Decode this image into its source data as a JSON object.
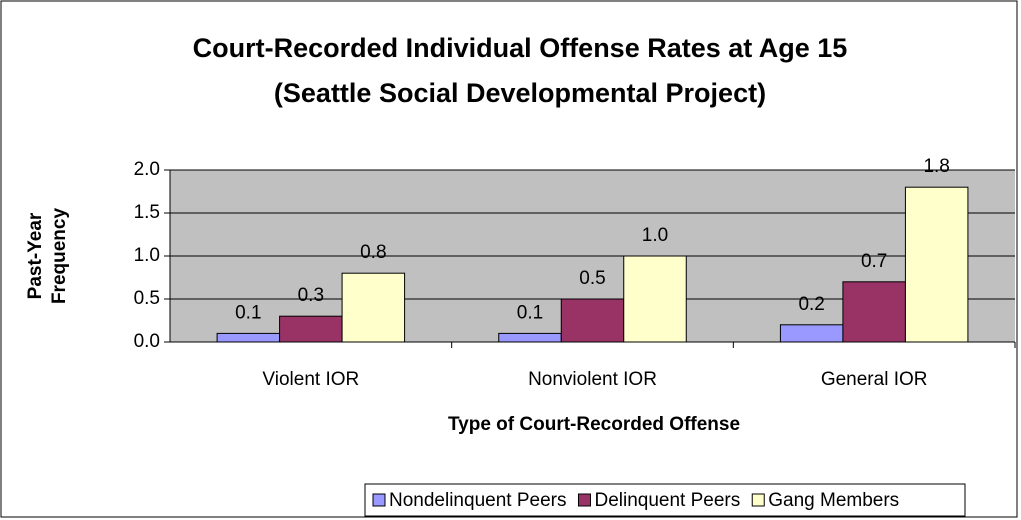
{
  "chart_data": {
    "type": "bar",
    "title": [
      "Court-Recorded Individual Offense Rates at Age 15",
      "(Seattle Social Developmental Project)"
    ],
    "y_label": [
      "Past-Year",
      "Frequency"
    ],
    "x_label": "Type of Court-Recorded Offense",
    "categories": [
      "Violent IOR",
      "Nonviolent IOR",
      "General IOR"
    ],
    "series": [
      {
        "name": "Nondelinquent Peers",
        "color": "#9999ff",
        "values": [
          0.1,
          0.1,
          0.2
        ],
        "value_labels": [
          "0.1",
          "0.1",
          "0.2"
        ]
      },
      {
        "name": "Delinquent Peers",
        "color": "#993366",
        "values": [
          0.3,
          0.5,
          0.7
        ],
        "value_labels": [
          "0.3",
          "0.5",
          "0.7"
        ]
      },
      {
        "name": "Gang Members",
        "color": "#ffffcc",
        "values": [
          0.8,
          1.0,
          1.8
        ],
        "value_labels": [
          "0.8",
          "1.0",
          "1.8"
        ]
      }
    ],
    "ylim": [
      0,
      2
    ],
    "yticks": [
      {
        "value": 0,
        "label": "0.0"
      },
      {
        "value": 0.5,
        "label": "0.5"
      },
      {
        "value": 1,
        "label": "1.0"
      },
      {
        "value": 1.5,
        "label": "1.5"
      },
      {
        "value": 2,
        "label": "2.0"
      }
    ],
    "grid": true,
    "plot_background": "#c0c0c0",
    "legend": "bottom"
  }
}
